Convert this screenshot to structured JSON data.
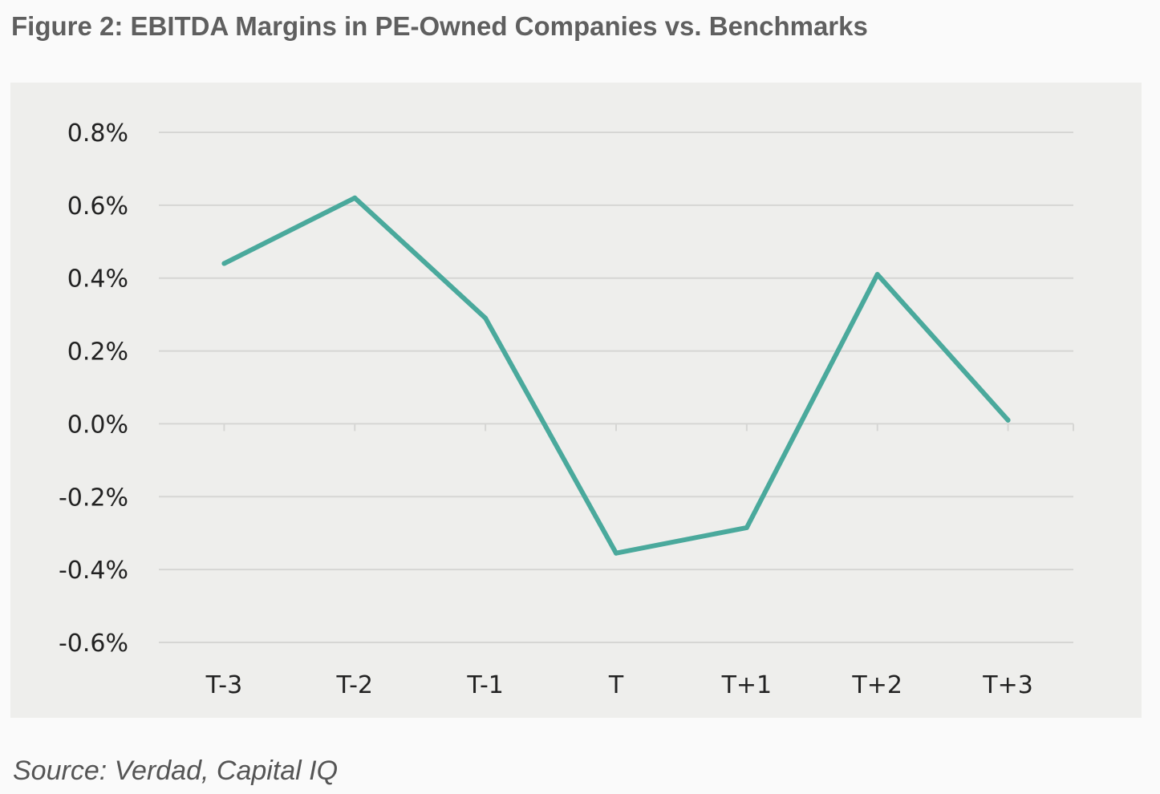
{
  "figure": {
    "title": "Figure 2: EBITDA Margins in PE-Owned Companies vs. Benchmarks",
    "source": "Source: Verdad, Capital IQ"
  },
  "colors": {
    "line": "#4aa99c",
    "gridline": "#d6d6d4",
    "panel_background": "#eeeeec",
    "page_background": "#fafafa",
    "title_text": "#5f5f5f",
    "tick_text": "#222222"
  },
  "chart_data": {
    "type": "line",
    "title": "Figure 2: EBITDA Margins in PE-Owned Companies vs. Benchmarks",
    "xlabel": "",
    "ylabel": "",
    "categories": [
      "T-3",
      "T-2",
      "T-1",
      "T",
      "T+1",
      "T+2",
      "T+3"
    ],
    "series": [
      {
        "values": [
          0.44,
          0.62,
          0.29,
          -0.355,
          -0.285,
          0.41,
          0.01
        ]
      }
    ],
    "ylim": [
      -0.6,
      0.8
    ],
    "yticks": [
      0.8,
      0.6,
      0.4,
      0.2,
      0.0,
      -0.2,
      -0.4,
      -0.6
    ],
    "ytick_labels": [
      "0.8%",
      "0.6%",
      "0.4%",
      "0.2%",
      "0.0%",
      "-0.2%",
      "-0.4%",
      "-0.6%"
    ],
    "y_unit": "%",
    "grid": "horizontal",
    "legend": "none"
  }
}
